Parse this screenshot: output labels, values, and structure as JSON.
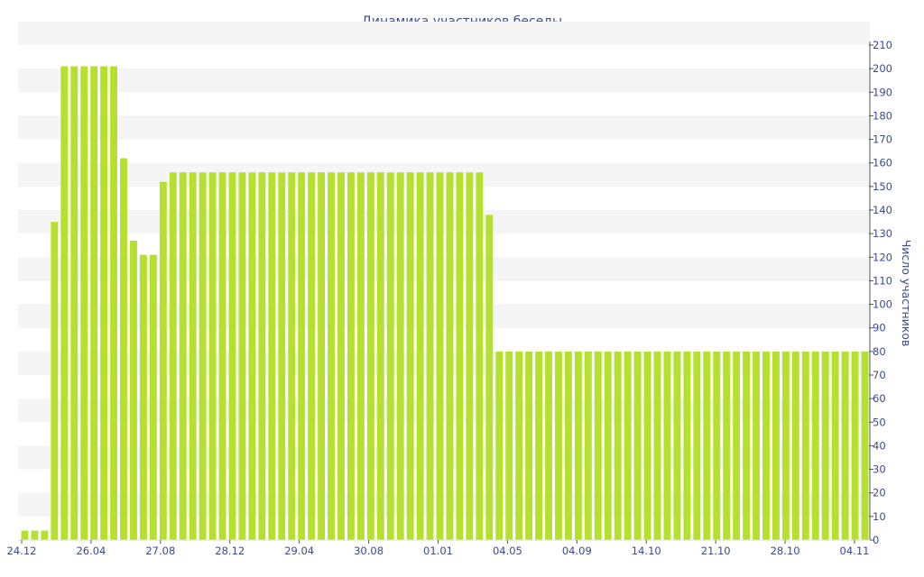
{
  "chart_data": {
    "type": "bar",
    "title": "Динамика участников беседы",
    "xlabel": "",
    "ylabel": "Число участников",
    "ylim": [
      0,
      210
    ],
    "y_tick_step": 10,
    "y_axis_side": "right",
    "x_tick_labels": [
      "24.12",
      "26.04",
      "27.08",
      "28.12",
      "29.04",
      "30.08",
      "01.01",
      "04.05",
      "04.09",
      "14.10",
      "21.10",
      "28.10",
      "04.11"
    ],
    "values": [
      4,
      4,
      4,
      135,
      201,
      201,
      201,
      201,
      201,
      201,
      162,
      127,
      121,
      121,
      152,
      156,
      156,
      156,
      156,
      156,
      156,
      156,
      156,
      156,
      156,
      156,
      156,
      156,
      156,
      156,
      156,
      156,
      156,
      156,
      156,
      156,
      156,
      156,
      156,
      156,
      156,
      156,
      156,
      156,
      156,
      156,
      156,
      138,
      80,
      80,
      80,
      80,
      80,
      80,
      80,
      80,
      80,
      80,
      80,
      80,
      80,
      80,
      80,
      80,
      80,
      80,
      80,
      80,
      80,
      80,
      80,
      80,
      80,
      80,
      80,
      80,
      80,
      80,
      80,
      80,
      80,
      80,
      80,
      80,
      80,
      80
    ],
    "grid": "alternating horizontal bands",
    "colors": {
      "bar": "#b5e12e",
      "band": "#f5f5f5",
      "text": "#3d4a8c",
      "axis": "#555555"
    }
  }
}
